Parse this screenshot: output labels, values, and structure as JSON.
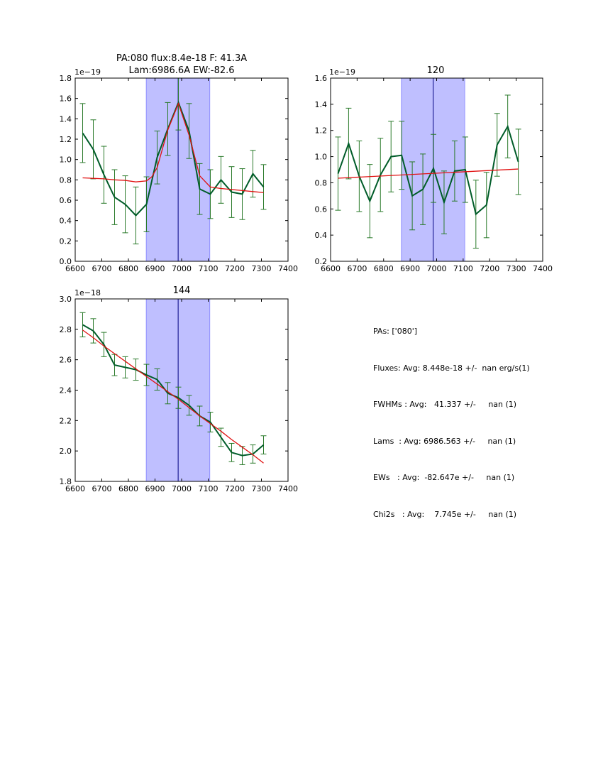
{
  "chart_data": [
    {
      "type": "line",
      "title": "PA:080 flux:8.4e-18 F: 41.3A",
      "subtitle": "Lam:6986.6A EW:-82.6",
      "xlim": [
        6600,
        7400
      ],
      "ylim": [
        0.0,
        1.8
      ],
      "xticks": [
        6600,
        6700,
        6800,
        6900,
        7000,
        7100,
        7200,
        7300,
        7400
      ],
      "xtick_labels": [
        "6600",
        "6700",
        "6800",
        "6900",
        "7000",
        "7100",
        "7200",
        "7300",
        "7400"
      ],
      "yticks": [
        0.0,
        0.2,
        0.4,
        0.6,
        0.8,
        1.0,
        1.2,
        1.4,
        1.6,
        1.8
      ],
      "ytick_labels": [
        "0.0",
        "0.2",
        "0.4",
        "0.6",
        "0.8",
        "1.0",
        "1.2",
        "1.4",
        "1.6",
        "1.8"
      ],
      "y_offset_label": "1e−19",
      "span": [
        6867,
        7106
      ],
      "vline": 6987,
      "grid": false,
      "series": [
        {
          "role": "data",
          "x": [
            6628,
            6668,
            6708,
            6748,
            6788,
            6828,
            6868,
            6908,
            6948,
            6988,
            7028,
            7068,
            7108,
            7148,
            7188,
            7228,
            7268,
            7308
          ],
          "y": [
            1.26,
            1.1,
            0.85,
            0.63,
            0.56,
            0.45,
            0.56,
            1.02,
            1.3,
            1.56,
            1.28,
            0.71,
            0.66,
            0.8,
            0.68,
            0.66,
            0.86,
            0.73
          ],
          "err": [
            0.29,
            0.29,
            0.28,
            0.27,
            0.28,
            0.28,
            0.27,
            0.26,
            0.26,
            0.27,
            0.27,
            0.25,
            0.24,
            0.23,
            0.25,
            0.25,
            0.23,
            0.22
          ]
        },
        {
          "role": "fit",
          "x": [
            6628,
            6668,
            6708,
            6748,
            6788,
            6828,
            6868,
            6888,
            6908,
            6948,
            6988,
            7028,
            7068,
            7108,
            7148,
            7188,
            7228,
            7268,
            7308
          ],
          "y": [
            0.82,
            0.815,
            0.81,
            0.8,
            0.795,
            0.78,
            0.79,
            0.83,
            0.92,
            1.29,
            1.55,
            1.24,
            0.84,
            0.73,
            0.715,
            0.705,
            0.695,
            0.685,
            0.675
          ]
        }
      ]
    },
    {
      "type": "line",
      "title": "120",
      "xlim": [
        6600,
        7400
      ],
      "ylim": [
        0.2,
        1.6
      ],
      "xticks": [
        6600,
        6700,
        6800,
        6900,
        7000,
        7100,
        7200,
        7300,
        7400
      ],
      "xtick_labels": [
        "6600",
        "6700",
        "6800",
        "6900",
        "7000",
        "7100",
        "7200",
        "7300",
        "7400"
      ],
      "yticks": [
        0.2,
        0.4,
        0.6,
        0.8,
        1.0,
        1.2,
        1.4,
        1.6
      ],
      "ytick_labels": [
        "0.2",
        "0.4",
        "0.6",
        "0.8",
        "1.0",
        "1.2",
        "1.4",
        "1.6"
      ],
      "y_offset_label": "1e−19",
      "span": [
        6867,
        7106
      ],
      "vline": 6987,
      "grid": false,
      "series": [
        {
          "role": "data",
          "x": [
            6628,
            6668,
            6708,
            6748,
            6788,
            6828,
            6868,
            6908,
            6948,
            6988,
            7028,
            7068,
            7108,
            7148,
            7188,
            7228,
            7268,
            7308
          ],
          "y": [
            0.87,
            1.1,
            0.85,
            0.66,
            0.86,
            1.0,
            1.01,
            0.7,
            0.75,
            0.91,
            0.65,
            0.89,
            0.9,
            0.56,
            0.63,
            1.09,
            1.23,
            0.96
          ],
          "err": [
            0.28,
            0.27,
            0.27,
            0.28,
            0.28,
            0.27,
            0.26,
            0.26,
            0.27,
            0.26,
            0.24,
            0.23,
            0.25,
            0.26,
            0.25,
            0.24,
            0.24,
            0.25
          ]
        },
        {
          "role": "fit",
          "x": [
            6628,
            7308
          ],
          "y": [
            0.835,
            0.905
          ]
        }
      ]
    },
    {
      "type": "line",
      "title": "144",
      "xlim": [
        6600,
        7400
      ],
      "ylim": [
        1.8,
        3.0
      ],
      "xticks": [
        6600,
        6700,
        6800,
        6900,
        7000,
        7100,
        7200,
        7300,
        7400
      ],
      "xtick_labels": [
        "6600",
        "6700",
        "6800",
        "6900",
        "7000",
        "7100",
        "7200",
        "7300",
        "7400"
      ],
      "yticks": [
        1.8,
        2.0,
        2.2,
        2.4,
        2.6,
        2.8,
        3.0
      ],
      "ytick_labels": [
        "1.8",
        "2.0",
        "2.2",
        "2.4",
        "2.6",
        "2.8",
        "3.0"
      ],
      "y_offset_label": "1e−18",
      "span": [
        6867,
        7106
      ],
      "vline": 6987,
      "grid": false,
      "series": [
        {
          "role": "data",
          "x": [
            6628,
            6668,
            6708,
            6748,
            6788,
            6828,
            6868,
            6908,
            6948,
            6988,
            7028,
            7068,
            7108,
            7148,
            7188,
            7228,
            7268,
            7308
          ],
          "y": [
            2.83,
            2.79,
            2.7,
            2.565,
            2.55,
            2.535,
            2.5,
            2.47,
            2.38,
            2.35,
            2.3,
            2.23,
            2.19,
            2.09,
            1.99,
            1.97,
            1.98,
            2.04
          ],
          "err": [
            0.08,
            0.08,
            0.08,
            0.07,
            0.07,
            0.07,
            0.07,
            0.07,
            0.07,
            0.07,
            0.065,
            0.065,
            0.065,
            0.06,
            0.06,
            0.06,
            0.06,
            0.06
          ]
        },
        {
          "role": "fit",
          "x": [
            6628,
            6668,
            6708,
            6748,
            6788,
            6828,
            6868,
            6908,
            6948,
            6988,
            7028,
            7068,
            7108,
            7148,
            7188,
            7228,
            7268,
            7308
          ],
          "y": [
            2.795,
            2.745,
            2.69,
            2.64,
            2.59,
            2.54,
            2.49,
            2.44,
            2.39,
            2.34,
            2.285,
            2.23,
            2.18,
            2.13,
            2.075,
            2.025,
            1.975,
            1.92
          ]
        }
      ]
    }
  ],
  "colors": {
    "data": "#005c29",
    "errorbar": "#2a7a2a",
    "fit": "#e01010",
    "span_fill": "#bfbfff",
    "span_edge": "#8080ff",
    "vline": "#000080"
  },
  "info": {
    "lines": [
      "PAs: ['080']",
      "Fluxes: Avg: 8.448e-18 +/-  nan erg/s(1)",
      "FWHMs : Avg:   41.337 +/-     nan (1)",
      "Lams  : Avg: 6986.563 +/-     nan (1)",
      "EWs   : Avg:  -82.647e +/-     nan (1)",
      "Chi2s   : Avg:    7.745e +/-     nan (1)"
    ]
  }
}
